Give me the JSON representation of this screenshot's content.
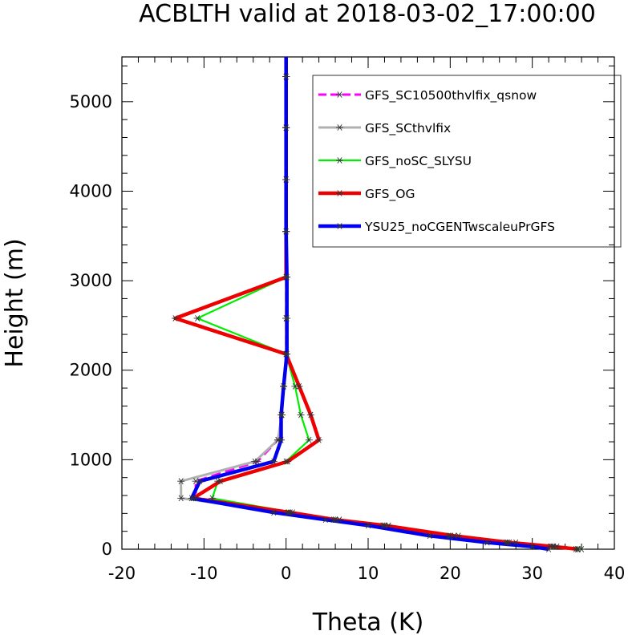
{
  "chart_data": {
    "type": "line",
    "title": "ACBLTH valid at 2018-03-02_17:00:00",
    "xlabel": "Theta (K)",
    "ylabel": "Height (m)",
    "xlim": [
      -20,
      40
    ],
    "ylim": [
      0,
      5500
    ],
    "x_ticks": [
      -20,
      -10,
      0,
      10,
      20,
      30,
      40
    ],
    "y_ticks": [
      0,
      1000,
      2000,
      3000,
      4000,
      5000
    ],
    "x_tick_labels": [
      "-20",
      "-10",
      "0",
      "10",
      "20",
      "30",
      "40"
    ],
    "y_tick_labels": [
      "0",
      "1000",
      "2000",
      "3000",
      "4000",
      "5000"
    ],
    "grid": false,
    "legend_position": "top-right",
    "series": [
      {
        "name": "GFS_SC10500thvlfix_qsnow",
        "color": "#ff00ff",
        "dash": true,
        "points": [
          [
            35.5,
            0
          ],
          [
            32.5,
            30
          ],
          [
            27,
            75
          ],
          [
            20,
            150
          ],
          [
            12,
            265
          ],
          [
            6,
            330
          ],
          [
            0.3,
            410
          ],
          [
            -11,
            570
          ],
          [
            -11,
            760
          ],
          [
            -3.5,
            980
          ],
          [
            -1,
            1220
          ],
          [
            -0.5,
            1500
          ],
          [
            -0.3,
            1820
          ],
          [
            0,
            2180
          ],
          [
            0,
            2580
          ],
          [
            0,
            3040
          ],
          [
            0,
            3550
          ],
          [
            0,
            4130
          ],
          [
            0,
            4710
          ],
          [
            0,
            5280
          ],
          [
            0,
            5500
          ]
        ]
      },
      {
        "name": "GFS_SCthvlfix",
        "color": "#b0b0b0",
        "dash": false,
        "points": [
          [
            35.3,
            0
          ],
          [
            32.3,
            30
          ],
          [
            26.8,
            75
          ],
          [
            19.8,
            150
          ],
          [
            11.8,
            265
          ],
          [
            5.8,
            330
          ],
          [
            0.2,
            410
          ],
          [
            -12.8,
            570
          ],
          [
            -12.8,
            760
          ],
          [
            -3.8,
            980
          ],
          [
            -1,
            1220
          ],
          [
            -0.5,
            1500
          ],
          [
            -0.3,
            1820
          ],
          [
            0,
            2180
          ],
          [
            0,
            2580
          ],
          [
            0,
            3040
          ],
          [
            0,
            3550
          ],
          [
            0,
            4130
          ],
          [
            0,
            4710
          ],
          [
            0,
            5280
          ],
          [
            0,
            5500
          ]
        ]
      },
      {
        "name": "GFS_noSC_SLYSU",
        "color": "#00ee00",
        "dash": false,
        "points": [
          [
            36,
            0
          ],
          [
            33,
            30
          ],
          [
            28,
            75
          ],
          [
            21,
            150
          ],
          [
            12.5,
            265
          ],
          [
            6.5,
            330
          ],
          [
            0.8,
            410
          ],
          [
            -9,
            570
          ],
          [
            -8.3,
            760
          ],
          [
            0,
            980
          ],
          [
            2.8,
            1220
          ],
          [
            1.8,
            1500
          ],
          [
            1.1,
            1820
          ],
          [
            0,
            2180
          ],
          [
            -10.8,
            2580
          ],
          [
            0,
            3040
          ],
          [
            0,
            3550
          ],
          [
            0,
            4130
          ],
          [
            0,
            4710
          ],
          [
            0,
            5280
          ],
          [
            0,
            5500
          ]
        ]
      },
      {
        "name": "GFS_OG",
        "color": "#ee0000",
        "dash": false,
        "points": [
          [
            35.6,
            0
          ],
          [
            32.6,
            30
          ],
          [
            27.2,
            75
          ],
          [
            20.5,
            150
          ],
          [
            12,
            265
          ],
          [
            6,
            330
          ],
          [
            0.5,
            410
          ],
          [
            -11.3,
            570
          ],
          [
            -8,
            760
          ],
          [
            0.2,
            980
          ],
          [
            4,
            1220
          ],
          [
            3,
            1500
          ],
          [
            1.6,
            1820
          ],
          [
            0,
            2180
          ],
          [
            -13.5,
            2580
          ],
          [
            0,
            3040
          ],
          [
            0,
            3550
          ],
          [
            0,
            4130
          ],
          [
            0,
            4710
          ],
          [
            0,
            5280
          ],
          [
            0,
            5500
          ]
        ]
      },
      {
        "name": "YSU25_noCGENTwscaleuPrGFS",
        "color": "#0000ee",
        "dash": false,
        "points": [
          [
            32,
            0
          ],
          [
            30,
            30
          ],
          [
            24.5,
            75
          ],
          [
            17.5,
            150
          ],
          [
            10,
            265
          ],
          [
            4.8,
            330
          ],
          [
            -1.5,
            410
          ],
          [
            -11.5,
            570
          ],
          [
            -10.5,
            760
          ],
          [
            -1.5,
            980
          ],
          [
            -0.6,
            1220
          ],
          [
            -0.6,
            1500
          ],
          [
            -0.3,
            1820
          ],
          [
            0.1,
            2180
          ],
          [
            0.1,
            2580
          ],
          [
            0.1,
            3040
          ],
          [
            0,
            3550
          ],
          [
            0,
            4130
          ],
          [
            0,
            4710
          ],
          [
            0,
            5280
          ],
          [
            0,
            5500
          ]
        ]
      }
    ]
  }
}
